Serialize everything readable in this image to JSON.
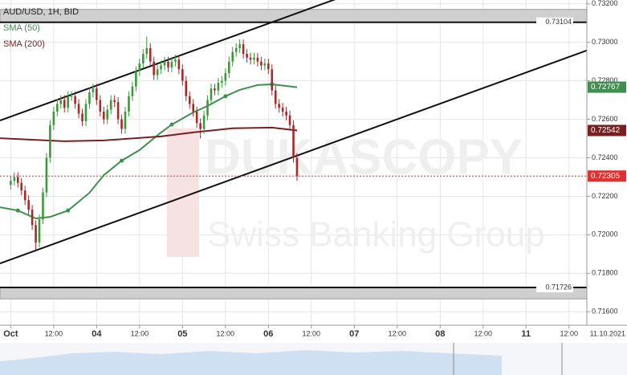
{
  "chart_data": {
    "type": "candlestick",
    "title": "AUD/USD, 1H, BID",
    "watermark": [
      "DUKASCOPY",
      "Swiss Banking Group"
    ],
    "date_label": "11.10.2021",
    "xlim": [
      -3,
      161
    ],
    "xticks": [
      {
        "value": 0,
        "label": "Oct"
      },
      {
        "value": 12,
        "label": "12:00"
      },
      {
        "value": 24,
        "label": "04"
      },
      {
        "value": 36,
        "label": "12:00"
      },
      {
        "value": 48,
        "label": "05"
      },
      {
        "value": 60,
        "label": "12:00"
      },
      {
        "value": 72,
        "label": "06"
      },
      {
        "value": 84,
        "label": "12:00"
      },
      {
        "value": 96,
        "label": "07"
      },
      {
        "value": 108,
        "label": "12:00"
      },
      {
        "value": 120,
        "label": "08"
      },
      {
        "value": 132,
        "label": "12:00"
      },
      {
        "value": 144,
        "label": "11"
      },
      {
        "value": 156,
        "label": "12:00"
      }
    ],
    "ylim": [
      0.7153,
      0.7322
    ],
    "yticks": [
      {
        "value": 0.716,
        "label": "0.71600"
      },
      {
        "value": 0.718,
        "label": "0.71800"
      },
      {
        "value": 0.72,
        "label": "0.72000"
      },
      {
        "value": 0.722,
        "label": "0.72200"
      },
      {
        "value": 0.724,
        "label": "0.72400"
      },
      {
        "value": 0.726,
        "label": "0.72600"
      },
      {
        "value": 0.728,
        "label": "0.72800"
      },
      {
        "value": 0.73,
        "label": "0.73000"
      },
      {
        "value": 0.732,
        "label": "0.73200"
      }
    ],
    "grid": true,
    "up_color": "#3a9a3a",
    "down_color": "#a52a2a",
    "x": [
      0,
      1,
      2,
      3,
      4,
      5,
      6,
      7,
      8,
      9,
      10,
      11,
      12,
      13,
      14,
      15,
      16,
      17,
      18,
      19,
      20,
      21,
      22,
      23,
      24,
      25,
      26,
      27,
      28,
      29,
      30,
      31,
      32,
      33,
      34,
      35,
      36,
      37,
      38,
      39,
      40,
      41,
      42,
      43,
      44,
      45,
      46,
      47,
      48,
      49,
      50,
      51,
      52,
      53,
      54,
      55,
      56,
      57,
      58,
      59,
      60,
      61,
      62,
      63,
      64,
      65,
      66,
      67,
      68,
      69,
      70,
      71,
      72,
      73,
      74,
      75,
      76,
      77,
      78,
      79,
      80
    ],
    "open": [
      0.7226,
      0.7228,
      0.723,
      0.7227,
      0.7223,
      0.7218,
      0.7213,
      0.7205,
      0.7196,
      0.7208,
      0.7222,
      0.724,
      0.7257,
      0.7264,
      0.7268,
      0.727,
      0.7266,
      0.7272,
      0.7272,
      0.7268,
      0.7263,
      0.7259,
      0.7268,
      0.7274,
      0.7276,
      0.727,
      0.7264,
      0.726,
      0.7265,
      0.727,
      0.7269,
      0.726,
      0.7255,
      0.7264,
      0.7272,
      0.7277,
      0.7285,
      0.7289,
      0.7294,
      0.7297,
      0.729,
      0.7283,
      0.7286,
      0.7288,
      0.729,
      0.7287,
      0.729,
      0.7291,
      0.7286,
      0.728,
      0.7272,
      0.7268,
      0.7264,
      0.7258,
      0.7255,
      0.7262,
      0.727,
      0.7276,
      0.7275,
      0.7279,
      0.728,
      0.7284,
      0.729,
      0.7295,
      0.7297,
      0.7299,
      0.7294,
      0.7292,
      0.7291,
      0.7292,
      0.729,
      0.7288,
      0.7289,
      0.7286,
      0.7275,
      0.7268,
      0.7266,
      0.7264,
      0.7262,
      0.7257,
      0.724
    ],
    "high": [
      0.72305,
      0.72325,
      0.72325,
      0.72295,
      0.72255,
      0.72205,
      0.72155,
      0.72075,
      0.72105,
      0.72245,
      0.72425,
      0.72595,
      0.72665,
      0.72705,
      0.72725,
      0.72725,
      0.72745,
      0.72745,
      0.72745,
      0.72705,
      0.72655,
      0.72705,
      0.72765,
      0.72785,
      0.72785,
      0.72725,
      0.72665,
      0.72675,
      0.72725,
      0.72725,
      0.72715,
      0.72625,
      0.72665,
      0.72745,
      0.72795,
      0.72875,
      0.72915,
      0.72965,
      0.7303,
      0.72995,
      0.72925,
      0.72885,
      0.72905,
      0.72925,
      0.72925,
      0.72925,
      0.72935,
      0.72935,
      0.72885,
      0.72825,
      0.72745,
      0.72705,
      0.72665,
      0.72605,
      0.72645,
      0.72725,
      0.72785,
      0.72785,
      0.72815,
      0.72825,
      0.72865,
      0.72925,
      0.72975,
      0.72995,
      0.73015,
      0.73015,
      0.72965,
      0.72945,
      0.72945,
      0.72945,
      0.72925,
      0.72915,
      0.72915,
      0.72885,
      0.72775,
      0.72705,
      0.72685,
      0.72665,
      0.72645,
      0.72595,
      0.72425
    ],
    "low": [
      0.72235,
      0.72255,
      0.72245,
      0.72205,
      0.72155,
      0.72105,
      0.72025,
      0.7192,
      0.71935,
      0.72055,
      0.72195,
      0.72375,
      0.72545,
      0.72615,
      0.72655,
      0.72635,
      0.72635,
      0.72695,
      0.72655,
      0.72605,
      0.72565,
      0.72565,
      0.72655,
      0.72715,
      0.72675,
      0.72615,
      0.72575,
      0.72575,
      0.72625,
      0.72665,
      0.72575,
      0.72525,
      0.72525,
      0.72615,
      0.72695,
      0.72745,
      0.72825,
      0.72865,
      0.72915,
      0.72875,
      0.72805,
      0.72805,
      0.72835,
      0.72855,
      0.72845,
      0.72845,
      0.72875,
      0.72835,
      0.72775,
      0.72695,
      0.72655,
      0.72615,
      0.72555,
      0.725,
      0.72525,
      0.72595,
      0.72675,
      0.72725,
      0.72725,
      0.72765,
      0.72775,
      0.72815,
      0.72875,
      0.72925,
      0.72945,
      0.72915,
      0.72895,
      0.72885,
      0.72885,
      0.72875,
      0.72855,
      0.72855,
      0.72835,
      0.72725,
      0.72655,
      0.72635,
      0.72615,
      0.72595,
      0.72545,
      0.72375,
      0.7228
    ],
    "close": [
      0.7228,
      0.723,
      0.7227,
      0.7223,
      0.7218,
      0.7213,
      0.7205,
      0.7196,
      0.7208,
      0.7222,
      0.724,
      0.7257,
      0.7264,
      0.7268,
      0.727,
      0.7266,
      0.7272,
      0.7272,
      0.7268,
      0.7263,
      0.7259,
      0.7268,
      0.7274,
      0.7276,
      0.727,
      0.7264,
      0.726,
      0.7265,
      0.727,
      0.7269,
      0.726,
      0.7255,
      0.7264,
      0.7272,
      0.7277,
      0.7285,
      0.7289,
      0.7294,
      0.7297,
      0.729,
      0.7283,
      0.7286,
      0.7288,
      0.729,
      0.7287,
      0.729,
      0.7291,
      0.7286,
      0.728,
      0.7272,
      0.7268,
      0.7264,
      0.7258,
      0.7255,
      0.7262,
      0.727,
      0.7276,
      0.7275,
      0.7279,
      0.728,
      0.7284,
      0.729,
      0.7295,
      0.7297,
      0.7299,
      0.7294,
      0.7292,
      0.7291,
      0.7292,
      0.729,
      0.7288,
      0.7289,
      0.7286,
      0.7275,
      0.7268,
      0.7266,
      0.7264,
      0.7262,
      0.7257,
      0.724,
      0.72305
    ],
    "last_price_color": "#e03030",
    "series": [
      {
        "name": "SMA (50)",
        "color": "#3f8f4f",
        "x": [
          -3,
          2,
          7,
          11,
          16,
          22,
          26,
          31,
          36,
          42,
          45,
          51,
          55,
          60,
          64,
          69,
          73,
          80
        ],
        "values": [
          0.72143,
          0.72126,
          0.72085,
          0.72093,
          0.72126,
          0.72218,
          0.7231,
          0.72385,
          0.7244,
          0.72532,
          0.72573,
          0.72636,
          0.72669,
          0.7272,
          0.72753,
          0.72778,
          0.72782,
          0.72767
        ]
      },
      {
        "name": "SMA (200)",
        "color": "#7a1f1f",
        "x": [
          -3,
          15,
          26,
          42,
          51,
          62,
          73,
          80
        ],
        "values": [
          0.72502,
          0.72486,
          0.7249,
          0.72511,
          0.72532,
          0.72553,
          0.72557,
          0.72542
        ]
      }
    ],
    "trendlines": [
      {
        "x": [
          -3,
          161
        ],
        "values": [
          0.71851,
          0.72958
        ]
      },
      {
        "x": [
          -3,
          161
        ],
        "values": [
          0.72594,
          0.73696
        ]
      }
    ],
    "zones": [
      {
        "level": 0.73104,
        "edge": 0.73171
      },
      {
        "level": 0.71726,
        "edge": 0.71667
      }
    ]
  }
}
